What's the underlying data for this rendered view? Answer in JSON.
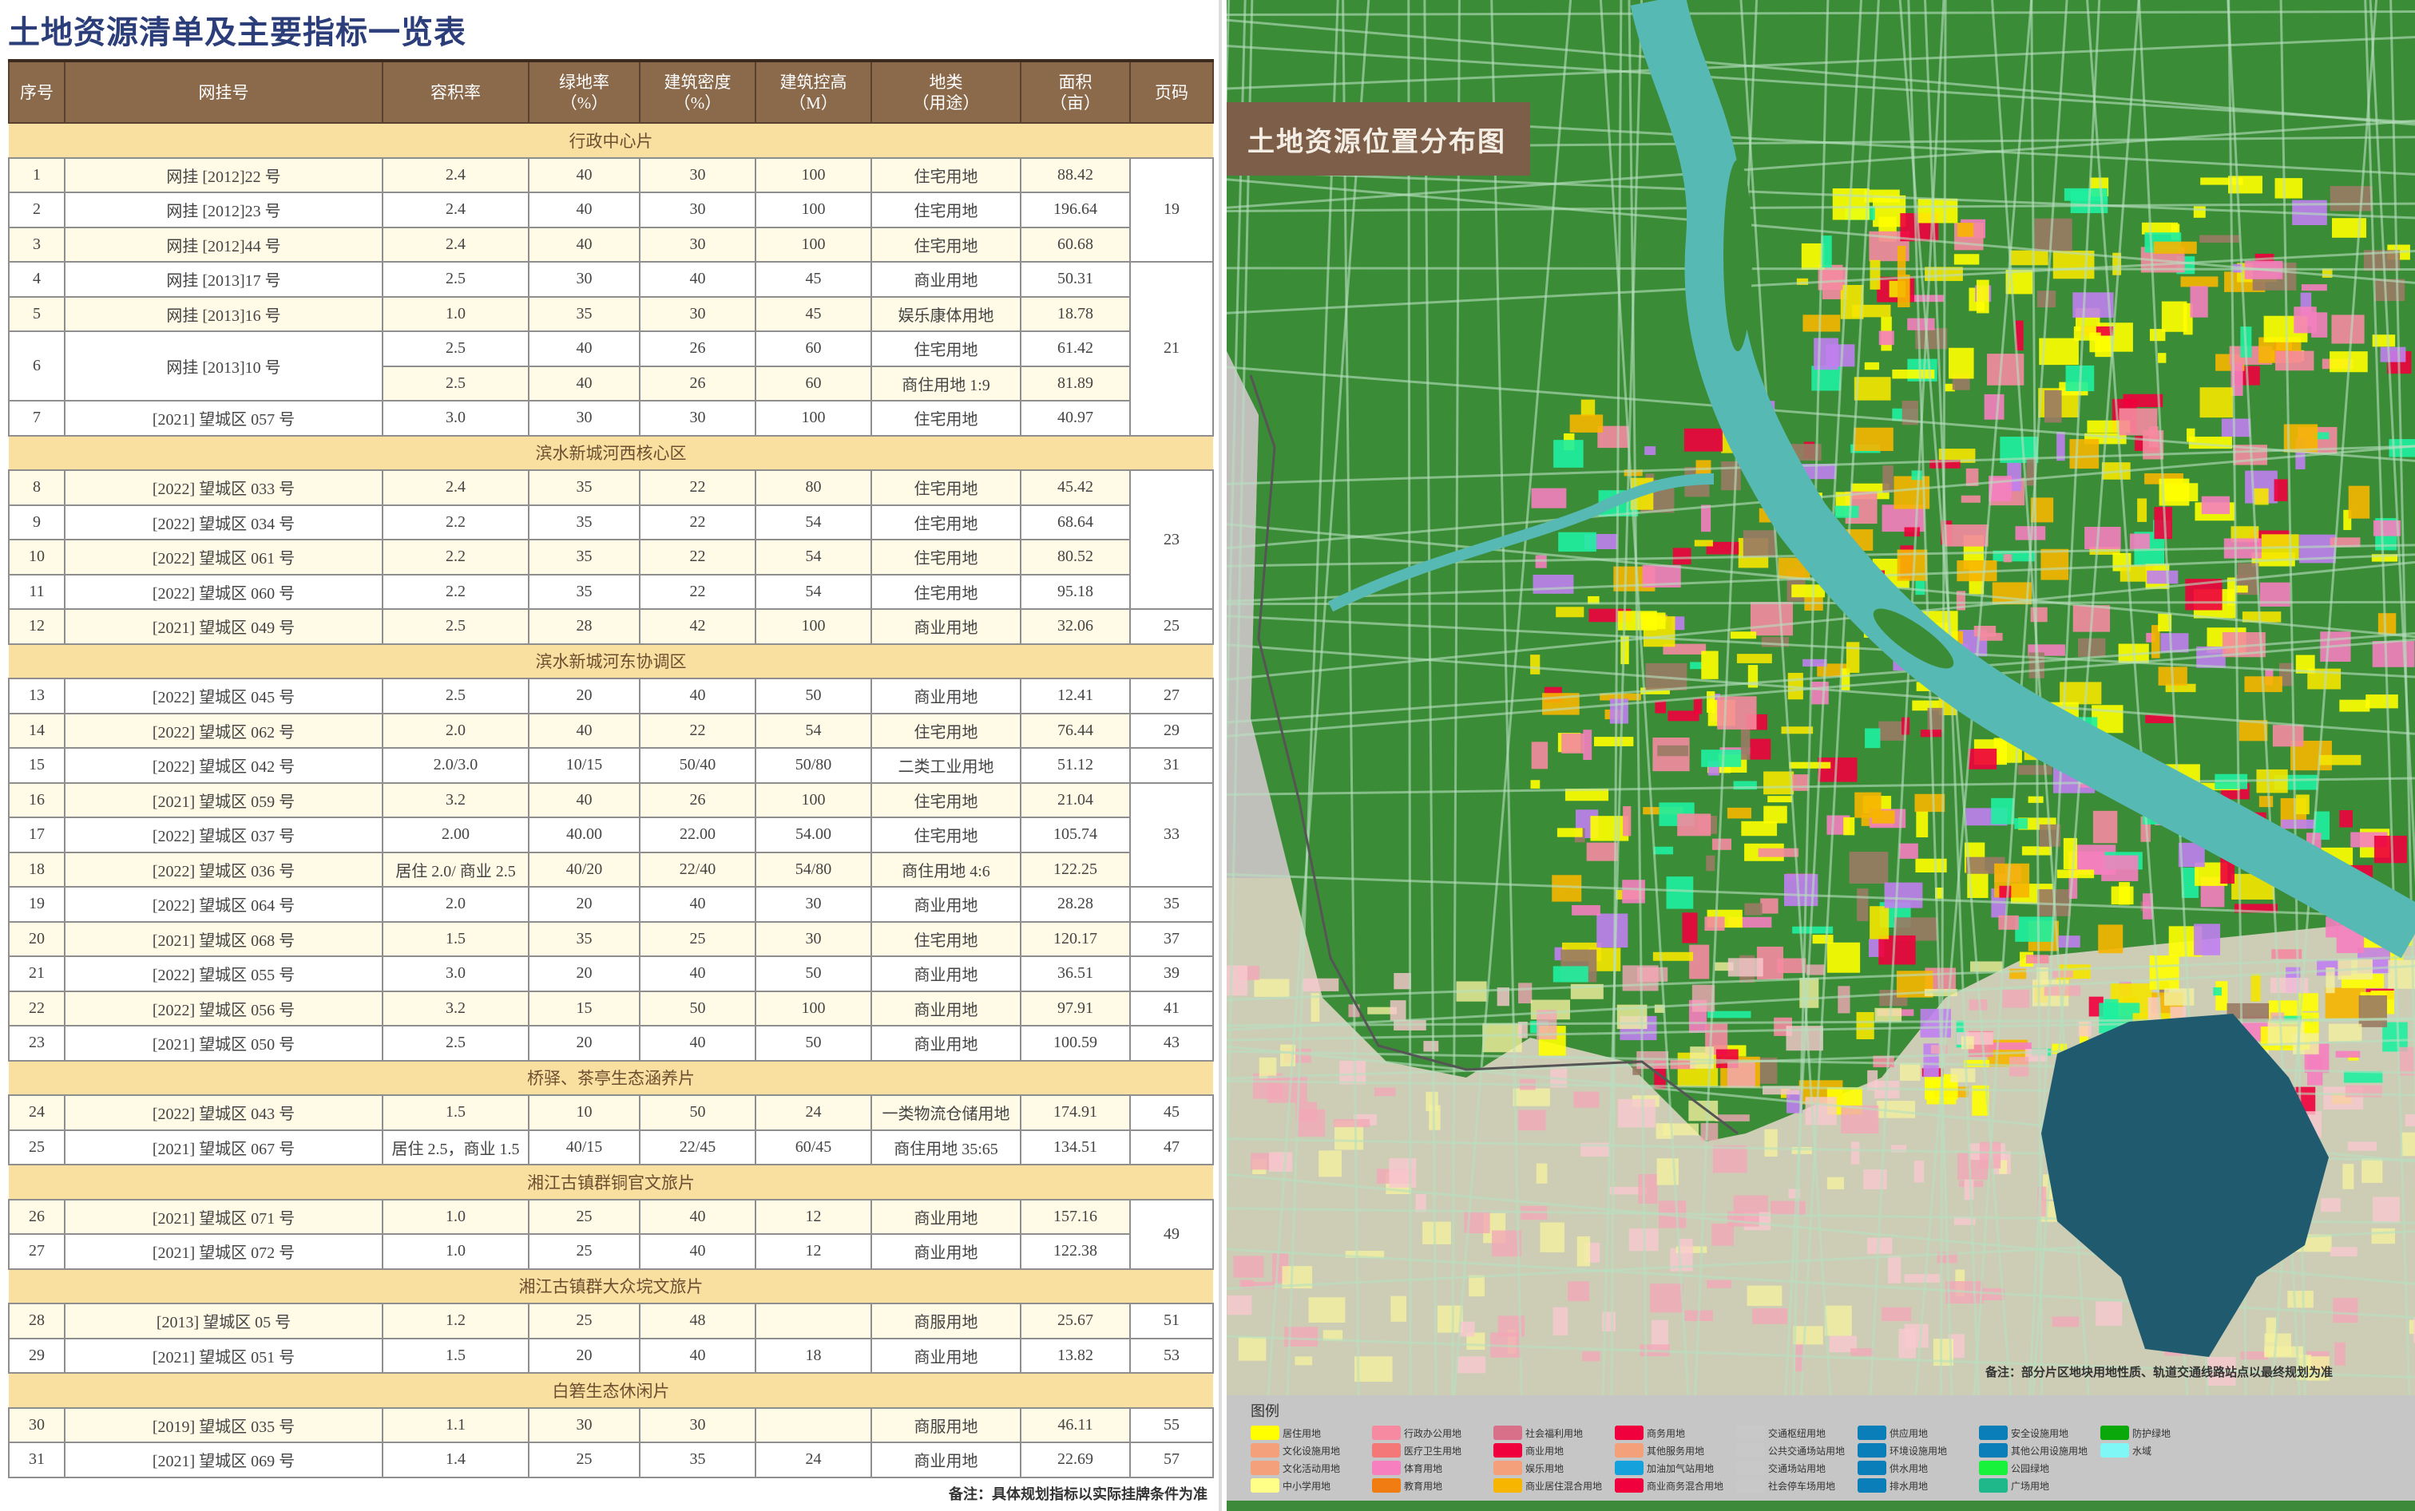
{
  "title": "土地资源清单及主要指标一览表",
  "columns": [
    "序号",
    "网挂号",
    "容积率",
    "绿地率\n（%）",
    "建筑密度\n（%）",
    "建筑控高\n（M）",
    "地类\n（用途）",
    "面积\n（亩）",
    "页码"
  ],
  "sections": [
    {
      "title": "行政中心片",
      "rows": [
        {
          "no": "1",
          "id": "网挂 [2012]22 号",
          "far": "2.4",
          "green": "40",
          "density": "30",
          "height": "100",
          "use": "住宅用地",
          "area": "88.42",
          "page": "19",
          "span": 3
        },
        {
          "no": "2",
          "id": "网挂 [2012]23 号",
          "far": "2.4",
          "green": "40",
          "density": "30",
          "height": "100",
          "use": "住宅用地",
          "area": "196.64"
        },
        {
          "no": "3",
          "id": "网挂 [2012]44 号",
          "far": "2.4",
          "green": "40",
          "density": "30",
          "height": "100",
          "use": "住宅用地",
          "area": "60.68"
        },
        {
          "no": "4",
          "id": "网挂 [2013]17 号",
          "far": "2.5",
          "green": "30",
          "density": "40",
          "height": "45",
          "use": "商业用地",
          "area": "50.31",
          "page": "21",
          "span": 5
        },
        {
          "no": "5",
          "id": "网挂 [2013]16 号",
          "far": "1.0",
          "green": "35",
          "density": "30",
          "height": "45",
          "use": "娱乐康体用地",
          "area": "18.78"
        },
        {
          "no": "6",
          "id": "网挂 [2013]10 号",
          "sub": [
            {
              "far": "2.5",
              "green": "40",
              "density": "26",
              "height": "60",
              "use": "住宅用地",
              "area": "61.42"
            },
            {
              "far": "2.5",
              "green": "40",
              "density": "26",
              "height": "60",
              "use": "商住用地 1:9",
              "area": "81.89"
            }
          ]
        },
        {
          "no": "7",
          "id": "[2021] 望城区 057 号",
          "far": "3.0",
          "green": "30",
          "density": "30",
          "height": "100",
          "use": "住宅用地",
          "area": "40.97"
        }
      ]
    },
    {
      "title": "滨水新城河西核心区",
      "rows": [
        {
          "no": "8",
          "id": "[2022] 望城区 033 号",
          "far": "2.4",
          "green": "35",
          "density": "22",
          "height": "80",
          "use": "住宅用地",
          "area": "45.42",
          "page": "23",
          "span": 4
        },
        {
          "no": "9",
          "id": "[2022] 望城区 034 号",
          "far": "2.2",
          "green": "35",
          "density": "22",
          "height": "54",
          "use": "住宅用地",
          "area": "68.64"
        },
        {
          "no": "10",
          "id": "[2022] 望城区 061 号",
          "far": "2.2",
          "green": "35",
          "density": "22",
          "height": "54",
          "use": "住宅用地",
          "area": "80.52"
        },
        {
          "no": "11",
          "id": "[2022] 望城区 060 号",
          "far": "2.2",
          "green": "35",
          "density": "22",
          "height": "54",
          "use": "住宅用地",
          "area": "95.18"
        },
        {
          "no": "12",
          "id": "[2021] 望城区 049 号",
          "far": "2.5",
          "green": "28",
          "density": "42",
          "height": "100",
          "use": "商业用地",
          "area": "32.06",
          "page": "25",
          "span": 1
        }
      ]
    },
    {
      "title": "滨水新城河东协调区",
      "rows": [
        {
          "no": "13",
          "id": "[2022] 望城区 045 号",
          "far": "2.5",
          "green": "20",
          "density": "40",
          "height": "50",
          "use": "商业用地",
          "area": "12.41",
          "page": "27",
          "span": 1
        },
        {
          "no": "14",
          "id": "[2022] 望城区 062 号",
          "far": "2.0",
          "green": "40",
          "density": "22",
          "height": "54",
          "use": "住宅用地",
          "area": "76.44",
          "page": "29",
          "span": 1
        },
        {
          "no": "15",
          "id": "[2022] 望城区 042 号",
          "far": "2.0/3.0",
          "green": "10/15",
          "density": "50/40",
          "height": "50/80",
          "use": "二类工业用地",
          "area": "51.12",
          "page": "31",
          "span": 1
        },
        {
          "no": "16",
          "id": "[2021] 望城区 059 号",
          "far": "3.2",
          "green": "40",
          "density": "26",
          "height": "100",
          "use": "住宅用地",
          "area": "21.04",
          "page": "33",
          "span": 3
        },
        {
          "no": "17",
          "id": "[2022] 望城区 037 号",
          "far": "2.00",
          "green": "40.00",
          "density": "22.00",
          "height": "54.00",
          "use": "住宅用地",
          "area": "105.74"
        },
        {
          "no": "18",
          "id": "[2022] 望城区 036 号",
          "far": "居住 2.0/ 商业 2.5",
          "green": "40/20",
          "density": "22/40",
          "height": "54/80",
          "use": "商住用地 4:6",
          "area": "122.25"
        },
        {
          "no": "19",
          "id": "[2022] 望城区 064 号",
          "far": "2.0",
          "green": "20",
          "density": "40",
          "height": "30",
          "use": "商业用地",
          "area": "28.28",
          "page": "35",
          "span": 1
        },
        {
          "no": "20",
          "id": "[2021] 望城区 068 号",
          "far": "1.5",
          "green": "35",
          "density": "25",
          "height": "30",
          "use": "住宅用地",
          "area": "120.17",
          "page": "37",
          "span": 1
        },
        {
          "no": "21",
          "id": "[2022] 望城区 055 号",
          "far": "3.0",
          "green": "20",
          "density": "40",
          "height": "50",
          "use": "商业用地",
          "area": "36.51",
          "page": "39",
          "span": 1
        },
        {
          "no": "22",
          "id": "[2022] 望城区 056 号",
          "far": "3.2",
          "green": "15",
          "density": "50",
          "height": "100",
          "use": "商业用地",
          "area": "97.91",
          "page": "41",
          "span": 1
        },
        {
          "no": "23",
          "id": "[2021] 望城区 050 号",
          "far": "2.5",
          "green": "20",
          "density": "40",
          "height": "50",
          "use": "商业用地",
          "area": "100.59",
          "page": "43",
          "span": 1
        }
      ]
    },
    {
      "title": "桥驿、茶亭生态涵养片",
      "rows": [
        {
          "no": "24",
          "id": "[2022] 望城区 043 号",
          "far": "1.5",
          "green": "10",
          "density": "50",
          "height": "24",
          "use": "一类物流仓储用地",
          "area": "174.91",
          "page": "45",
          "span": 1
        },
        {
          "no": "25",
          "id": "[2021] 望城区 067 号",
          "far": "居住 2.5，商业 1.5",
          "green": "40/15",
          "density": "22/45",
          "height": "60/45",
          "use": "商住用地 35:65",
          "area": "134.51",
          "page": "47",
          "span": 1
        }
      ]
    },
    {
      "title": "湘江古镇群铜官文旅片",
      "rows": [
        {
          "no": "26",
          "id": "[2021] 望城区 071 号",
          "far": "1.0",
          "green": "25",
          "density": "40",
          "height": "12",
          "use": "商业用地",
          "area": "157.16",
          "page": "49",
          "span": 2
        },
        {
          "no": "27",
          "id": "[2021] 望城区 072 号",
          "far": "1.0",
          "green": "25",
          "density": "40",
          "height": "12",
          "use": "商业用地",
          "area": "122.38"
        }
      ]
    },
    {
      "title": "湘江古镇群大众垸文旅片",
      "rows": [
        {
          "no": "28",
          "id": "[2013] 望城区 05 号",
          "far": "1.2",
          "green": "25",
          "density": "48",
          "height": "",
          "use": "商服用地",
          "area": "25.67",
          "page": "51",
          "span": 1
        },
        {
          "no": "29",
          "id": "[2021] 望城区 051 号",
          "far": "1.5",
          "green": "20",
          "density": "40",
          "height": "18",
          "use": "商业用地",
          "area": "13.82",
          "page": "53",
          "span": 1
        }
      ]
    },
    {
      "title": "白箬生态休闲片",
      "rows": [
        {
          "no": "30",
          "id": "[2019] 望城区 035 号",
          "far": "1.1",
          "green": "30",
          "density": "30",
          "height": "",
          "use": "商服用地",
          "area": "46.11",
          "page": "55",
          "span": 1
        },
        {
          "no": "31",
          "id": "[2021] 望城区 069 号",
          "far": "1.4",
          "green": "25",
          "density": "35",
          "height": "24",
          "use": "商业用地",
          "area": "22.69",
          "page": "57",
          "span": 1
        }
      ]
    }
  ],
  "note": "备注：具体规划指标以实际挂牌条件为准",
  "map": {
    "title": "土地资源位置分布图",
    "note": "备注：部分片区地块用地性质、轨道交通线路站点以最终规划为准",
    "legend_title": "图例",
    "legend": [
      {
        "label": "居住用地",
        "color": "#ffff00"
      },
      {
        "label": "文化设施用地",
        "color": "#f4a07a"
      },
      {
        "label": "文化活动用地",
        "color": "#f4a07a"
      },
      {
        "label": "中小学用地",
        "color": "#ffff88"
      },
      {
        "label": "行政办公用地",
        "color": "#f58aa0"
      },
      {
        "label": "医疗卫生用地",
        "color": "#f47878"
      },
      {
        "label": "体育用地",
        "color": "#f57fbf"
      },
      {
        "label": "教育用地",
        "color": "#f07c12"
      },
      {
        "label": "社会福利用地",
        "color": "#d8708a"
      },
      {
        "label": "商业用地",
        "color": "#f0003c"
      },
      {
        "label": "娱乐用地",
        "color": "#f4a07a"
      },
      {
        "label": "商业居住混合用地",
        "color": "#f7b500"
      },
      {
        "label": "商务用地",
        "color": "#f0003c"
      },
      {
        "label": "其他服务用地",
        "color": "#f4a07a"
      },
      {
        "label": "加油加气站用地",
        "color": "#15a2dc"
      },
      {
        "label": "商业商务混合用地",
        "color": "#f0003c"
      },
      {
        "label": "交通枢纽用地",
        "color": "#c8c8c8"
      },
      {
        "label": "公共交通场站用地",
        "color": "#c8c8c8"
      },
      {
        "label": "交通场站用地",
        "color": "#c8c8c8"
      },
      {
        "label": "社会停车场用地",
        "color": "#c8c8c8"
      },
      {
        "label": "供应用地",
        "color": "#0a7eb8"
      },
      {
        "label": "环境设施用地",
        "color": "#0a7eb8"
      },
      {
        "label": "供水用地",
        "color": "#0a7eb8"
      },
      {
        "label": "排水用地",
        "color": "#0a7eb8"
      },
      {
        "label": "安全设施用地",
        "color": "#0a7eb8"
      },
      {
        "label": "其他公用设施用地",
        "color": "#0a7eb8"
      },
      {
        "label": "公园绿地",
        "color": "#19f23a"
      },
      {
        "label": "广场用地",
        "color": "#1fb88a"
      },
      {
        "label": "防护绿地",
        "color": "#0aa80a"
      },
      {
        "label": "水域",
        "color": "#80f7f7"
      }
    ]
  }
}
